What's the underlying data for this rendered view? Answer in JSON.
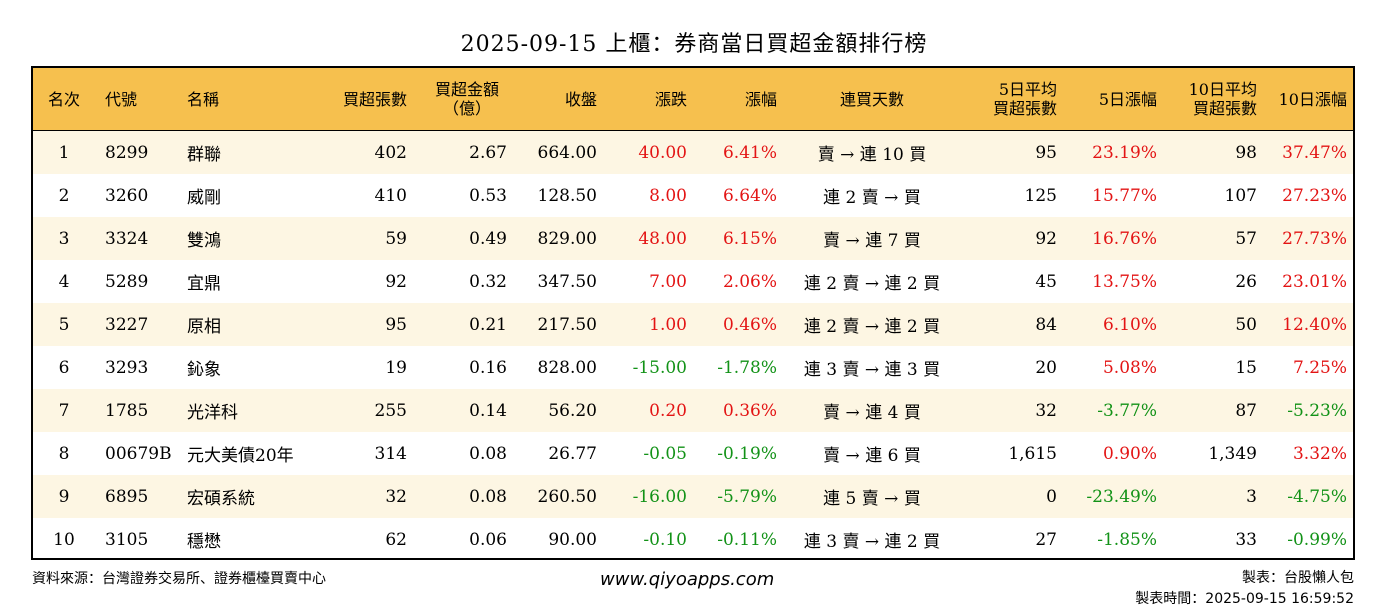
{
  "title": "2025-09-15 上櫃：券商當日買超金額排行榜",
  "headers": {
    "rank": "名次",
    "code": "代號",
    "name": "名稱",
    "buy_lots": "買超張數",
    "buy_amount_1": "買超金額",
    "buy_amount_2": "（億）",
    "close": "收盤",
    "change": "漲跌",
    "change_pct": "漲幅",
    "streak": "連買天數",
    "avg5_1": "5日平均",
    "avg5_2": "買超張數",
    "pct5": "5日漲幅",
    "avg10_1": "10日平均",
    "avg10_2": "買超張數",
    "pct10": "10日漲幅"
  },
  "rows": [
    {
      "rank": "1",
      "code": "8299",
      "name": "群聯",
      "buy_lots": "402",
      "buy_amount": "2.67",
      "close": "664.00",
      "change": "40.00",
      "change_pct": "6.41%",
      "streak": "賣 → 連 10 買",
      "avg5": "95",
      "pct5": "23.19%",
      "avg10": "98",
      "pct10": "37.47%"
    },
    {
      "rank": "2",
      "code": "3260",
      "name": "威剛",
      "buy_lots": "410",
      "buy_amount": "0.53",
      "close": "128.50",
      "change": "8.00",
      "change_pct": "6.64%",
      "streak": "連 2 賣 → 買",
      "avg5": "125",
      "pct5": "15.77%",
      "avg10": "107",
      "pct10": "27.23%"
    },
    {
      "rank": "3",
      "code": "3324",
      "name": "雙鴻",
      "buy_lots": "59",
      "buy_amount": "0.49",
      "close": "829.00",
      "change": "48.00",
      "change_pct": "6.15%",
      "streak": "賣 → 連 7 買",
      "avg5": "92",
      "pct5": "16.76%",
      "avg10": "57",
      "pct10": "27.73%"
    },
    {
      "rank": "4",
      "code": "5289",
      "name": "宜鼎",
      "buy_lots": "92",
      "buy_amount": "0.32",
      "close": "347.50",
      "change": "7.00",
      "change_pct": "2.06%",
      "streak": "連 2 賣 → 連 2 買",
      "avg5": "45",
      "pct5": "13.75%",
      "avg10": "26",
      "pct10": "23.01%"
    },
    {
      "rank": "5",
      "code": "3227",
      "name": "原相",
      "buy_lots": "95",
      "buy_amount": "0.21",
      "close": "217.50",
      "change": "1.00",
      "change_pct": "0.46%",
      "streak": "連 2 賣 → 連 2 買",
      "avg5": "84",
      "pct5": "6.10%",
      "avg10": "50",
      "pct10": "12.40%"
    },
    {
      "rank": "6",
      "code": "3293",
      "name": "鈊象",
      "buy_lots": "19",
      "buy_amount": "0.16",
      "close": "828.00",
      "change": "-15.00",
      "change_pct": "-1.78%",
      "streak": "連 3 賣 → 連 3 買",
      "avg5": "20",
      "pct5": "5.08%",
      "avg10": "15",
      "pct10": "7.25%"
    },
    {
      "rank": "7",
      "code": "1785",
      "name": "光洋科",
      "buy_lots": "255",
      "buy_amount": "0.14",
      "close": "56.20",
      "change": "0.20",
      "change_pct": "0.36%",
      "streak": "賣 → 連 4 買",
      "avg5": "32",
      "pct5": "-3.77%",
      "avg10": "87",
      "pct10": "-5.23%"
    },
    {
      "rank": "8",
      "code": "00679B",
      "name": "元大美債20年",
      "buy_lots": "314",
      "buy_amount": "0.08",
      "close": "26.77",
      "change": "-0.05",
      "change_pct": "-0.19%",
      "streak": "賣 → 連 6 買",
      "avg5": "1,615",
      "pct5": "0.90%",
      "avg10": "1,349",
      "pct10": "3.32%"
    },
    {
      "rank": "9",
      "code": "6895",
      "name": "宏碩系統",
      "buy_lots": "32",
      "buy_amount": "0.08",
      "close": "260.50",
      "change": "-16.00",
      "change_pct": "-5.79%",
      "streak": "連 5 賣 → 買",
      "avg5": "0",
      "pct5": "-23.49%",
      "avg10": "3",
      "pct10": "-4.75%"
    },
    {
      "rank": "10",
      "code": "3105",
      "name": "穩懋",
      "buy_lots": "62",
      "buy_amount": "0.06",
      "close": "90.00",
      "change": "-0.10",
      "change_pct": "-0.11%",
      "streak": "連 3 賣 → 連 2 買",
      "avg5": "27",
      "pct5": "-1.85%",
      "avg10": "33",
      "pct10": "-0.99%"
    }
  ],
  "footer": {
    "source": "資料來源：台灣證券交易所、證券櫃檯買賣中心",
    "website": "www.qiyoapps.com",
    "author": "製表：台股懶人包",
    "made_at": "製表時間：2025-09-15 16:59:52"
  },
  "colors": {
    "header_bg": "#f6c04e",
    "stripe_bg": "#fdf6e3",
    "positive": "#e31414",
    "negative": "#129217"
  }
}
